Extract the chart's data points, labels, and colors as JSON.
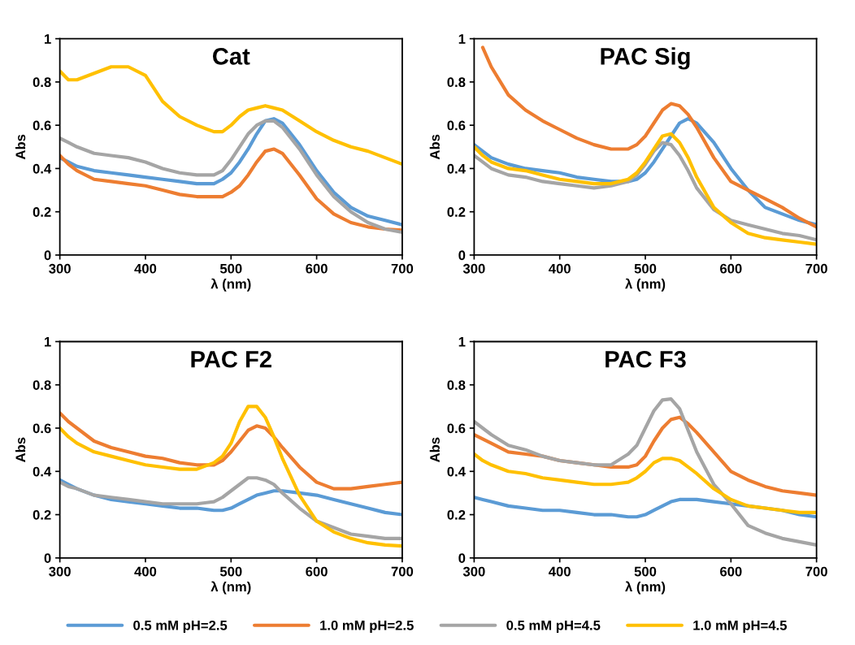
{
  "chart_data": [
    {
      "type": "line",
      "title": "Cat",
      "xlabel": "λ (nm)",
      "ylabel": "Abs",
      "xlim": [
        300,
        700
      ],
      "xticks": [
        300,
        400,
        500,
        600,
        700
      ],
      "ylim": [
        0,
        1
      ],
      "yticks": [
        0,
        0.2,
        0.4,
        0.6,
        0.8,
        1
      ],
      "grid": false,
      "legend": "bottom",
      "marker": "none",
      "x": [
        300,
        310,
        320,
        340,
        360,
        380,
        400,
        420,
        440,
        460,
        480,
        490,
        500,
        510,
        520,
        530,
        540,
        550,
        560,
        580,
        600,
        620,
        640,
        660,
        680,
        700
      ],
      "series": [
        {
          "name": "0.5 mM pH=2.5",
          "color": "#5b9bd5",
          "values": [
            0.45,
            0.43,
            0.41,
            0.39,
            0.38,
            0.37,
            0.36,
            0.35,
            0.34,
            0.33,
            0.33,
            0.35,
            0.38,
            0.43,
            0.49,
            0.56,
            0.62,
            0.63,
            0.61,
            0.51,
            0.39,
            0.29,
            0.22,
            0.18,
            0.16,
            0.14
          ]
        },
        {
          "name": "1.0 mM pH=2.5",
          "color": "#ed7d31",
          "values": [
            0.46,
            0.42,
            0.39,
            0.35,
            0.34,
            0.33,
            0.32,
            0.3,
            0.28,
            0.27,
            0.27,
            0.27,
            0.29,
            0.32,
            0.37,
            0.43,
            0.48,
            0.49,
            0.47,
            0.37,
            0.26,
            0.19,
            0.15,
            0.13,
            0.12,
            0.115
          ]
        },
        {
          "name": "0.5 mM pH=4.5",
          "color": "#a5a5a5",
          "values": [
            0.54,
            0.52,
            0.5,
            0.47,
            0.46,
            0.45,
            0.43,
            0.4,
            0.38,
            0.37,
            0.37,
            0.39,
            0.44,
            0.5,
            0.56,
            0.6,
            0.62,
            0.62,
            0.59,
            0.49,
            0.37,
            0.27,
            0.2,
            0.15,
            0.12,
            0.105
          ]
        },
        {
          "name": "1.0 mM pH=4.5",
          "color": "#ffc000",
          "values": [
            0.85,
            0.81,
            0.81,
            0.84,
            0.87,
            0.87,
            0.83,
            0.71,
            0.64,
            0.6,
            0.57,
            0.57,
            0.6,
            0.64,
            0.67,
            0.68,
            0.69,
            0.68,
            0.67,
            0.62,
            0.57,
            0.53,
            0.5,
            0.48,
            0.45,
            0.42
          ]
        }
      ]
    },
    {
      "type": "line",
      "title": "PAC Sig",
      "xlabel": "λ (nm)",
      "ylabel": "Abs",
      "xlim": [
        300,
        700
      ],
      "xticks": [
        300,
        400,
        500,
        600,
        700
      ],
      "ylim": [
        0,
        1
      ],
      "yticks": [
        0,
        0.2,
        0.4,
        0.6,
        0.8,
        1
      ],
      "grid": false,
      "marker": "none",
      "x": [
        300,
        310,
        320,
        340,
        360,
        380,
        400,
        420,
        440,
        460,
        480,
        490,
        500,
        510,
        520,
        530,
        540,
        550,
        560,
        580,
        600,
        620,
        640,
        660,
        680,
        700
      ],
      "series": [
        {
          "color": "#5b9bd5",
          "values": [
            0.51,
            0.48,
            0.45,
            0.42,
            0.4,
            0.39,
            0.38,
            0.36,
            0.35,
            0.34,
            0.34,
            0.35,
            0.38,
            0.43,
            0.49,
            0.55,
            0.61,
            0.63,
            0.61,
            0.52,
            0.4,
            0.3,
            0.22,
            0.19,
            0.16,
            0.14
          ]
        },
        {
          "color": "#ed7d31",
          "values": [
            null,
            0.96,
            0.87,
            0.74,
            0.67,
            0.62,
            0.58,
            0.54,
            0.51,
            0.49,
            0.49,
            0.51,
            0.55,
            0.61,
            0.67,
            0.7,
            0.69,
            0.65,
            0.59,
            0.45,
            0.34,
            0.3,
            0.26,
            0.22,
            0.17,
            0.13
          ]
        },
        {
          "color": "#a5a5a5",
          "values": [
            0.46,
            0.43,
            0.4,
            0.37,
            0.36,
            0.34,
            0.33,
            0.32,
            0.31,
            0.32,
            0.34,
            0.37,
            0.42,
            0.48,
            0.52,
            0.51,
            0.46,
            0.39,
            0.31,
            0.21,
            0.16,
            0.14,
            0.12,
            0.1,
            0.09,
            0.07
          ]
        },
        {
          "color": "#ffc000",
          "values": [
            0.5,
            0.46,
            0.43,
            0.4,
            0.39,
            0.37,
            0.35,
            0.34,
            0.33,
            0.33,
            0.35,
            0.38,
            0.43,
            0.49,
            0.55,
            0.56,
            0.52,
            0.45,
            0.36,
            0.22,
            0.15,
            0.1,
            0.08,
            0.07,
            0.06,
            0.05
          ]
        }
      ]
    },
    {
      "type": "line",
      "title": "PAC F2",
      "xlabel": "λ (nm)",
      "ylabel": "Abs",
      "xlim": [
        300,
        700
      ],
      "xticks": [
        300,
        400,
        500,
        600,
        700
      ],
      "ylim": [
        0,
        1
      ],
      "yticks": [
        0,
        0.2,
        0.4,
        0.6,
        0.8,
        1
      ],
      "grid": false,
      "marker": "none",
      "x": [
        300,
        310,
        320,
        340,
        360,
        380,
        400,
        420,
        440,
        460,
        480,
        490,
        500,
        510,
        520,
        530,
        540,
        550,
        560,
        580,
        600,
        620,
        640,
        660,
        680,
        700
      ],
      "series": [
        {
          "color": "#5b9bd5",
          "values": [
            0.36,
            0.34,
            0.32,
            0.29,
            0.27,
            0.26,
            0.25,
            0.24,
            0.23,
            0.23,
            0.22,
            0.22,
            0.23,
            0.25,
            0.27,
            0.29,
            0.3,
            0.31,
            0.31,
            0.3,
            0.29,
            0.27,
            0.25,
            0.23,
            0.21,
            0.2
          ]
        },
        {
          "color": "#ed7d31",
          "values": [
            0.67,
            0.63,
            0.6,
            0.54,
            0.51,
            0.49,
            0.47,
            0.46,
            0.44,
            0.43,
            0.43,
            0.45,
            0.49,
            0.54,
            0.59,
            0.61,
            0.6,
            0.56,
            0.51,
            0.42,
            0.35,
            0.32,
            0.32,
            0.33,
            0.34,
            0.35
          ]
        },
        {
          "color": "#a5a5a5",
          "values": [
            0.35,
            0.33,
            0.32,
            0.29,
            0.28,
            0.27,
            0.26,
            0.25,
            0.25,
            0.25,
            0.26,
            0.28,
            0.31,
            0.34,
            0.37,
            0.37,
            0.36,
            0.34,
            0.3,
            0.23,
            0.17,
            0.14,
            0.11,
            0.1,
            0.09,
            0.09
          ]
        },
        {
          "color": "#ffc000",
          "values": [
            0.6,
            0.56,
            0.53,
            0.49,
            0.47,
            0.45,
            0.43,
            0.42,
            0.41,
            0.41,
            0.44,
            0.47,
            0.53,
            0.63,
            0.7,
            0.7,
            0.65,
            0.56,
            0.46,
            0.29,
            0.17,
            0.12,
            0.09,
            0.07,
            0.06,
            0.055
          ]
        }
      ]
    },
    {
      "type": "line",
      "title": "PAC F3",
      "xlabel": "λ (nm)",
      "ylabel": "Abs",
      "xlim": [
        300,
        700
      ],
      "xticks": [
        300,
        400,
        500,
        600,
        700
      ],
      "ylim": [
        0,
        1
      ],
      "yticks": [
        0,
        0.2,
        0.4,
        0.6,
        0.8,
        1
      ],
      "grid": false,
      "marker": "none",
      "x": [
        300,
        310,
        320,
        340,
        360,
        380,
        400,
        420,
        440,
        460,
        480,
        490,
        500,
        510,
        520,
        530,
        540,
        550,
        560,
        580,
        600,
        620,
        640,
        660,
        680,
        700
      ],
      "series": [
        {
          "color": "#5b9bd5",
          "values": [
            0.28,
            0.27,
            0.26,
            0.24,
            0.23,
            0.22,
            0.22,
            0.21,
            0.2,
            0.2,
            0.19,
            0.19,
            0.2,
            0.22,
            0.24,
            0.26,
            0.27,
            0.27,
            0.27,
            0.26,
            0.25,
            0.24,
            0.23,
            0.22,
            0.2,
            0.19
          ]
        },
        {
          "color": "#ed7d31",
          "values": [
            0.57,
            0.55,
            0.53,
            0.49,
            0.48,
            0.47,
            0.45,
            0.44,
            0.43,
            0.42,
            0.42,
            0.43,
            0.47,
            0.54,
            0.6,
            0.64,
            0.65,
            0.62,
            0.58,
            0.49,
            0.4,
            0.36,
            0.33,
            0.31,
            0.3,
            0.29
          ]
        },
        {
          "color": "#a5a5a5",
          "values": [
            0.63,
            0.6,
            0.57,
            0.52,
            0.5,
            0.47,
            0.45,
            0.44,
            0.43,
            0.43,
            0.48,
            0.52,
            0.6,
            0.68,
            0.73,
            0.735,
            0.69,
            0.59,
            0.49,
            0.34,
            0.25,
            0.15,
            0.115,
            0.09,
            0.075,
            0.06
          ]
        },
        {
          "color": "#ffc000",
          "values": [
            0.48,
            0.45,
            0.43,
            0.4,
            0.39,
            0.37,
            0.36,
            0.35,
            0.34,
            0.34,
            0.35,
            0.37,
            0.4,
            0.44,
            0.46,
            0.46,
            0.45,
            0.42,
            0.39,
            0.32,
            0.27,
            0.24,
            0.23,
            0.22,
            0.21,
            0.21
          ]
        }
      ]
    }
  ]
}
